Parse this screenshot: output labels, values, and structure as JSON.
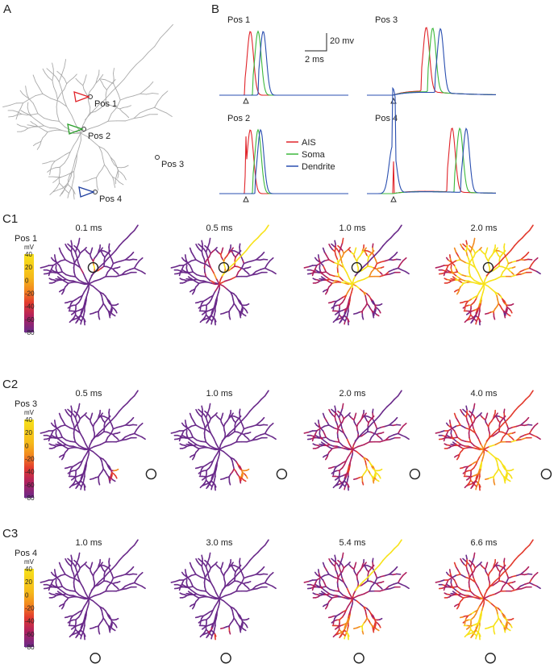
{
  "panel_a": {
    "label": "A",
    "positions": [
      "Pos 1",
      "Pos 2",
      "Pos 3",
      "Pos 4"
    ]
  },
  "panel_b": {
    "label": "B",
    "plots": [
      {
        "title": "Pos 1"
      },
      {
        "title": "Pos 3"
      },
      {
        "title": "Pos 2"
      },
      {
        "title": "Pos 4"
      }
    ],
    "scale_bar": {
      "voltage": "20 mv",
      "time": "2 ms"
    },
    "legend": [
      "AIS",
      "Soma",
      "Dendrite"
    ]
  },
  "panel_c": {
    "colorbar": {
      "unit": "mV",
      "ticks": [
        40,
        20,
        0,
        -20,
        -40,
        -60,
        -80
      ]
    },
    "rows": [
      {
        "label": "C1",
        "position": "Pos 1",
        "times": [
          "0.1 ms",
          "0.5 ms",
          "1.0 ms",
          "2.0 ms"
        ]
      },
      {
        "label": "C2",
        "position": "Pos 3",
        "times": [
          "0.5 ms",
          "1.0 ms",
          "2.0 ms",
          "4.0 ms"
        ]
      },
      {
        "label": "C3",
        "position": "Pos 4",
        "times": [
          "1.0 ms",
          "3.0 ms",
          "5.4 ms",
          "6.6 ms"
        ]
      }
    ]
  }
}
